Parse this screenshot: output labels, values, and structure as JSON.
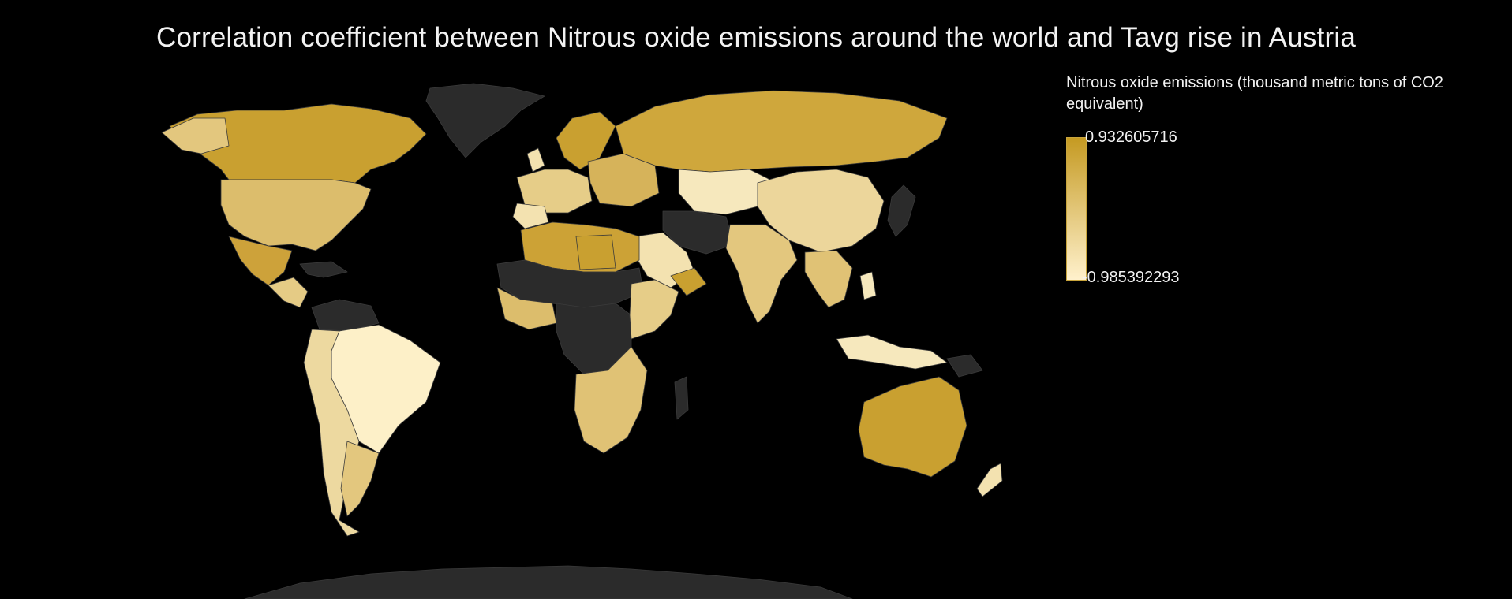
{
  "title": "Correlation coefficient between Nitrous oxide emissions around the world and Tavg rise in Austria",
  "legend": {
    "title": "Nitrous oxide emissions (thousand metric tons of CO2 equivalent)",
    "max_label": "0.932605716",
    "min_label": "-0.985392293",
    "max_value": 0.932605716,
    "min_value": -0.985392293,
    "color_high": "#c9a030",
    "color_low": "#fff1cc",
    "no_data_color": "#2b2b2b"
  },
  "background_color": "#000000"
}
